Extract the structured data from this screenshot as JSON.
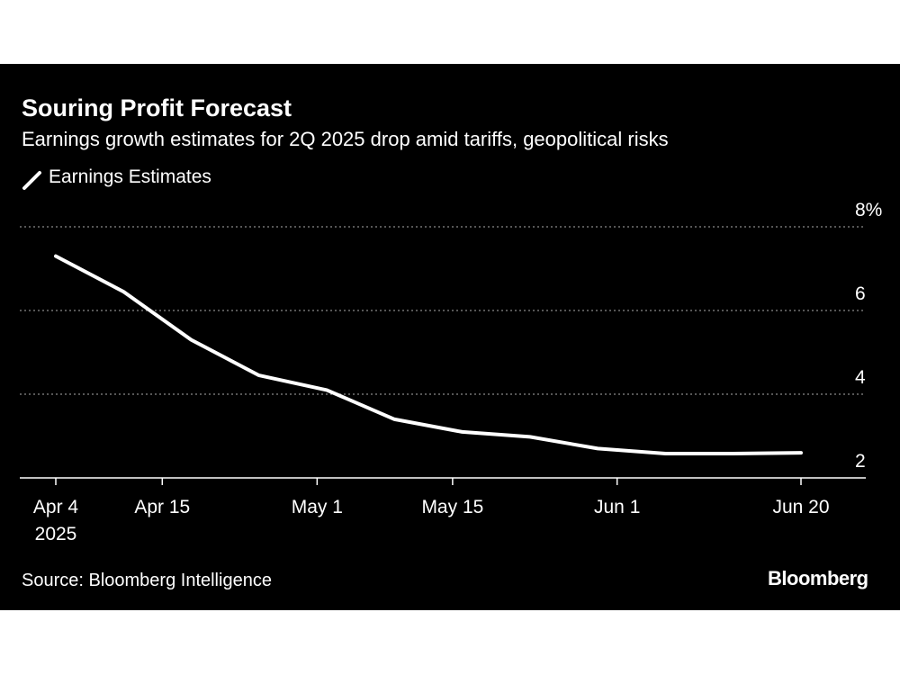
{
  "colors": {
    "background": "#000000",
    "line": "#ffffff",
    "grid": "#8a8a8a",
    "text": "#ffffff"
  },
  "header": {
    "title": "Souring Profit Forecast",
    "subtitle": "Earnings growth estimates for 2Q 2025 drop amid tariffs, geopolitical risks"
  },
  "footer": {
    "source": "Source: Bloomberg Intelligence",
    "brand": "Bloomberg"
  },
  "chart_data": {
    "type": "line",
    "title": "Souring Profit Forecast",
    "subtitle": "Earnings growth estimates for 2Q 2025 drop amid tariffs, geopolitical risks",
    "xlabel": "",
    "ylabel": "",
    "ylim": [
      2,
      8
    ],
    "y_ticks": [
      2,
      4,
      6,
      8
    ],
    "y_tick_labels": [
      "2",
      "4",
      "6",
      "8%"
    ],
    "x_domain": [
      0,
      77
    ],
    "x_ticks": [
      {
        "x": 0,
        "label": "Apr 4",
        "sublabel": "2025"
      },
      {
        "x": 11,
        "label": "Apr 15"
      },
      {
        "x": 27,
        "label": "May 1"
      },
      {
        "x": 41,
        "label": "May 15"
      },
      {
        "x": 58,
        "label": "Jun 1"
      },
      {
        "x": 77,
        "label": "Jun 20"
      }
    ],
    "grid": "horizontal dashed",
    "legend_position": "top-left",
    "series": [
      {
        "name": "Earnings Estimates",
        "x": [
          0,
          7,
          14,
          21,
          28,
          35,
          42,
          49,
          56,
          63,
          70,
          77
        ],
        "values": [
          7.3,
          6.45,
          5.3,
          4.45,
          4.1,
          3.4,
          3.1,
          2.98,
          2.7,
          2.58,
          2.58,
          2.6
        ]
      }
    ]
  }
}
